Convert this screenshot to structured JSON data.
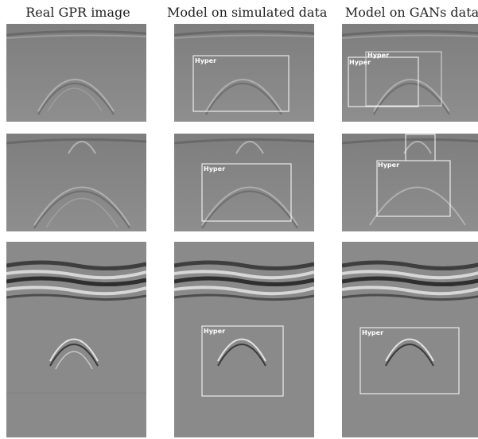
{
  "columns": [
    {
      "title": "Real GPR image"
    },
    {
      "title": "Model on simulated data"
    },
    {
      "title": "Model on GANs data"
    }
  ],
  "detection_label": "Hyper",
  "colors": {
    "background_gray": "#8a8a8a",
    "box_color": "#ffffff"
  }
}
